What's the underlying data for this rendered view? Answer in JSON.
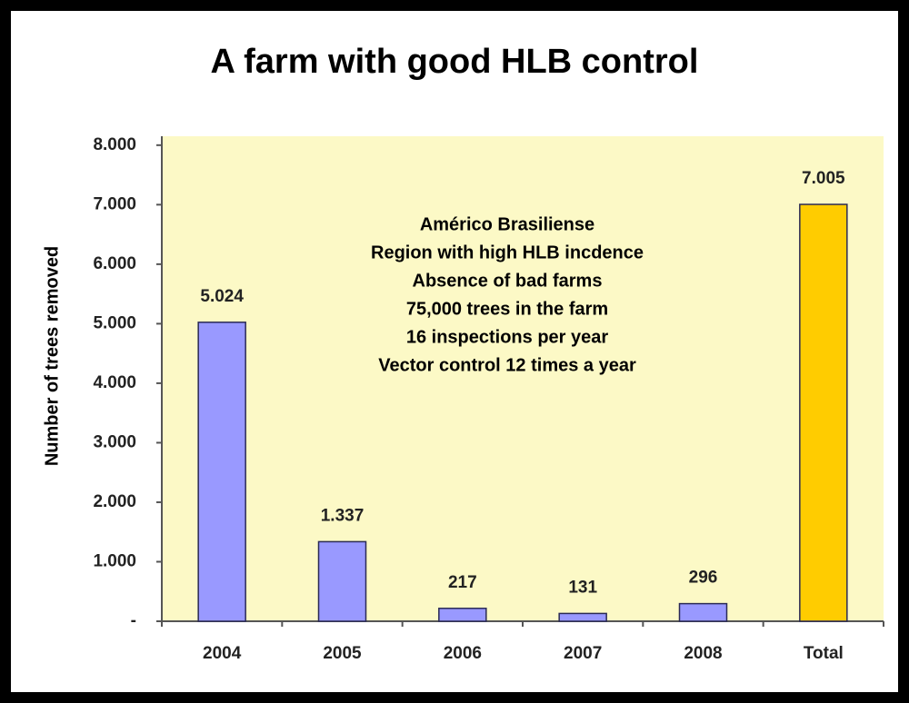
{
  "chart_data": {
    "type": "bar",
    "title": "A farm with good HLB control",
    "y_label": "Number of trees removed",
    "categories": [
      "2004",
      "2005",
      "2006",
      "2007",
      "2008",
      "Total"
    ],
    "values": [
      5024,
      1337,
      217,
      131,
      296,
      7005
    ],
    "value_labels": [
      "5.024",
      "1.337",
      "217",
      "131",
      "296",
      "7.005"
    ],
    "colors": [
      "#9999ff",
      "#9999ff",
      "#9999ff",
      "#9999ff",
      "#9999ff",
      "#ffcc00"
    ],
    "ylim": [
      0,
      8150
    ],
    "yticks": [
      {
        "value": 0,
        "label": "-"
      },
      {
        "value": 1000,
        "label": "1.000"
      },
      {
        "value": 2000,
        "label": "2.000"
      },
      {
        "value": 3000,
        "label": "3.000"
      },
      {
        "value": 4000,
        "label": "4.000"
      },
      {
        "value": 5000,
        "label": "5.000"
      },
      {
        "value": 6000,
        "label": "6.000"
      },
      {
        "value": 7000,
        "label": "7.000"
      },
      {
        "value": 8000,
        "label": "8.000"
      }
    ],
    "annotations": [
      "Américo Brasiliense",
      "Region with high HLB incdence",
      "Absence of bad farms",
      "75,000 trees in the farm",
      "16 inspections per year",
      "Vector control 12 times a year"
    ],
    "grid": false
  }
}
